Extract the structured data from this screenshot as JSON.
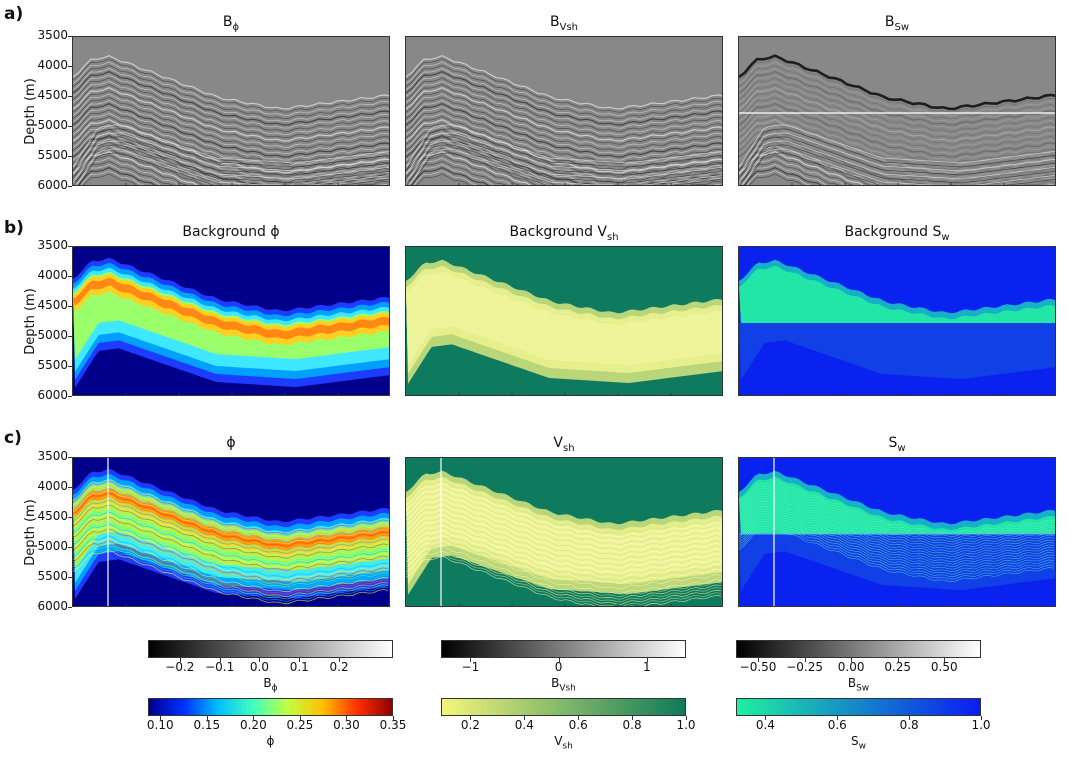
{
  "rows": [
    {
      "label": "a)",
      "titles": [
        "Bϕ",
        "BVsh",
        "BSw"
      ],
      "title_parts": [
        [
          "B",
          "ϕ"
        ],
        [
          "B",
          "Vsh"
        ],
        [
          "B",
          "Sw"
        ]
      ]
    },
    {
      "label": "b)",
      "titles": [
        "Background ϕ",
        "Background Vsh",
        "Background Sw"
      ],
      "title_parts": [
        [
          "Background ϕ",
          ""
        ],
        [
          "Background V",
          "sh"
        ],
        [
          "Background S",
          "w"
        ]
      ]
    },
    {
      "label": "c)",
      "titles": [
        "ϕ",
        "Vsh",
        "Sw"
      ],
      "title_parts": [
        [
          "ϕ",
          ""
        ],
        [
          "V",
          "sh"
        ],
        [
          "S",
          "w"
        ]
      ]
    }
  ],
  "depth_axis": {
    "label": "Depth (m)",
    "ticks": [
      "3500",
      "4000",
      "4500",
      "5000",
      "5500",
      "6000"
    ]
  },
  "colorbars": [
    {
      "name": "B_phi",
      "ticks": [
        "−0.2",
        "−0.1",
        "0.0",
        "0.1",
        "0.2"
      ],
      "label_main": "B",
      "label_sub": "ϕ",
      "start": "#000000",
      "end": "#ffffff"
    },
    {
      "name": "B_vsh",
      "ticks": [
        "−1",
        "0",
        "1"
      ],
      "label_main": "B",
      "label_sub": "Vsh",
      "start": "#000000",
      "end": "#ffffff"
    },
    {
      "name": "B_sw",
      "ticks": [
        "−0.50",
        "−0.25",
        "0.00",
        "0.25",
        "0.50"
      ],
      "label_main": "B",
      "label_sub": "Sw",
      "start": "#000000",
      "end": "#ffffff"
    },
    {
      "name": "phi",
      "ticks": [
        "0.10",
        "0.15",
        "0.20",
        "0.25",
        "0.30",
        "0.35"
      ],
      "label_main": "ϕ",
      "label_sub": "",
      "start": "#00008f",
      "end": "#8f0000"
    },
    {
      "name": "vsh",
      "ticks": [
        "0.2",
        "0.4",
        "0.6",
        "0.8",
        "1.0"
      ],
      "label_main": "V",
      "label_sub": "sh",
      "start": "#f4f57a",
      "end": "#0f7a5a"
    },
    {
      "name": "sw",
      "ticks": [
        "0.4",
        "0.6",
        "0.8",
        "1.0"
      ],
      "label_main": "S",
      "label_sub": "w",
      "start": "#1ef0a0",
      "end": "#0a1cf5"
    }
  ],
  "colors": {
    "jet_deep": "#00008b",
    "vsh_bg": "#0e7a5e",
    "sw_bg": "#0a22f0",
    "seismic_gray": "#888888"
  }
}
